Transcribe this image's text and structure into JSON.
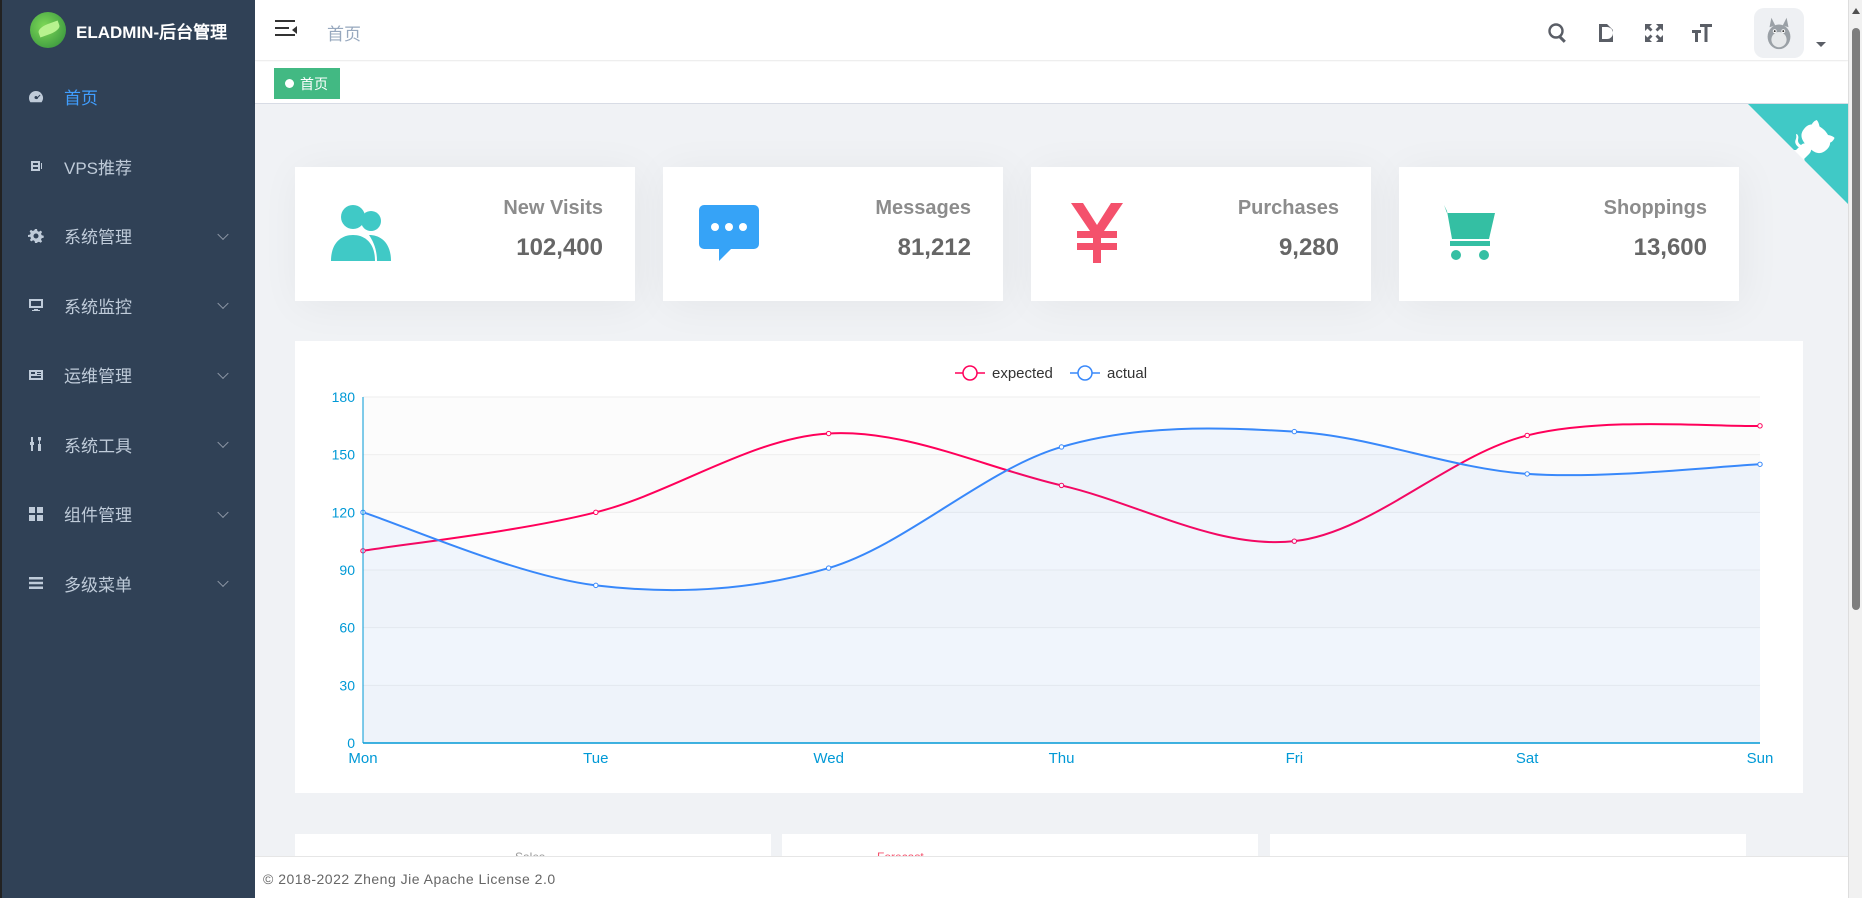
{
  "app": {
    "title": "ELADMIN-后台管理"
  },
  "sidebar": {
    "items": [
      {
        "label": "首页",
        "icon": "dashboard-icon",
        "active": true,
        "expandable": false
      },
      {
        "label": "VPS推荐",
        "icon": "server-icon",
        "active": false,
        "expandable": false
      },
      {
        "label": "系统管理",
        "icon": "gear-icon",
        "active": false,
        "expandable": true
      },
      {
        "label": "系统监控",
        "icon": "monitor-icon",
        "active": false,
        "expandable": true
      },
      {
        "label": "运维管理",
        "icon": "ops-icon",
        "active": false,
        "expandable": true
      },
      {
        "label": "系统工具",
        "icon": "tools-icon",
        "active": false,
        "expandable": true
      },
      {
        "label": "组件管理",
        "icon": "component-icon",
        "active": false,
        "expandable": true
      },
      {
        "label": "多级菜单",
        "icon": "menu-icon",
        "active": false,
        "expandable": true
      }
    ]
  },
  "navbar": {
    "breadcrumb": "首页",
    "icons": [
      "search-icon",
      "document-icon",
      "fullscreen-icon",
      "font-size-icon"
    ]
  },
  "tags": {
    "active": "首页"
  },
  "panels": [
    {
      "label": "New Visits",
      "value": "102,400",
      "icon": "people-icon",
      "color": "#40c9c6"
    },
    {
      "label": "Messages",
      "value": "81,212",
      "icon": "message-icon",
      "color": "#36a3f7"
    },
    {
      "label": "Purchases",
      "value": "9,280",
      "icon": "yen-icon",
      "color": "#f4516c"
    },
    {
      "label": "Shoppings",
      "value": "13,600",
      "icon": "cart-icon",
      "color": "#34bfa3"
    }
  ],
  "chart_data": {
    "type": "line",
    "categories": [
      "Mon",
      "Tue",
      "Wed",
      "Thu",
      "Fri",
      "Sat",
      "Sun"
    ],
    "series": [
      {
        "name": "expected",
        "values": [
          100,
          120,
          161,
          134,
          105,
          160,
          165
        ],
        "color": "#FF005A"
      },
      {
        "name": "actual",
        "values": [
          120,
          82,
          91,
          154,
          162,
          140,
          145
        ],
        "color": "#3888fa"
      }
    ],
    "ylim": [
      0,
      180
    ],
    "yticks": [
      0,
      30,
      60,
      90,
      120,
      150,
      180
    ],
    "grid": true,
    "legend": "top-center",
    "axis_color": "#0099d6"
  },
  "bottom_cards": [
    {
      "label": "Sales",
      "color": "#999999"
    },
    {
      "label": "Forecast",
      "color": "#f4516c"
    },
    {
      "label": "",
      "color": "#999999"
    }
  ],
  "footer": {
    "text": "© 2018-2022 Zheng Jie Apache License 2.0"
  }
}
